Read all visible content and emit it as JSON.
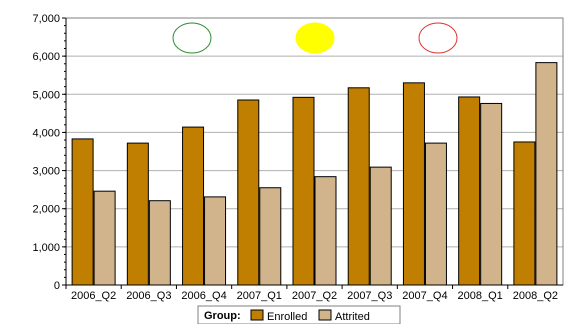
{
  "chart_data": {
    "type": "bar",
    "categories": [
      "2006_Q2",
      "2006_Q3",
      "2006_Q4",
      "2007_Q1",
      "2007_Q2",
      "2007_Q3",
      "2007_Q4",
      "2008_Q1",
      "2008_Q2"
    ],
    "series": [
      {
        "name": "Enrolled",
        "color": "#c07f00",
        "values": [
          3830,
          3720,
          4140,
          4850,
          4920,
          5170,
          5300,
          4930,
          3750
        ]
      },
      {
        "name": "Attrited",
        "color": "#d2b48c",
        "values": [
          2460,
          2210,
          2310,
          2550,
          2840,
          3090,
          3720,
          4760,
          5830
        ]
      }
    ],
    "title": "",
    "xlabel": "",
    "ylabel": "",
    "ylim": [
      0,
      7000
    ],
    "yticks": [
      "0",
      "1,000",
      "2,000",
      "3,000",
      "4,000",
      "5,000",
      "6,000",
      "7,000"
    ],
    "grid": true,
    "legend": {
      "title": "Group:",
      "placement": "bottom-center"
    },
    "indicators": [
      {
        "name": "green-indicator",
        "fill": "none",
        "stroke": "#2e8b2e"
      },
      {
        "name": "yellow-indicator",
        "fill": "#ffff00",
        "stroke": "#ffff00"
      },
      {
        "name": "red-indicator",
        "fill": "none",
        "stroke": "#e03030"
      }
    ]
  }
}
